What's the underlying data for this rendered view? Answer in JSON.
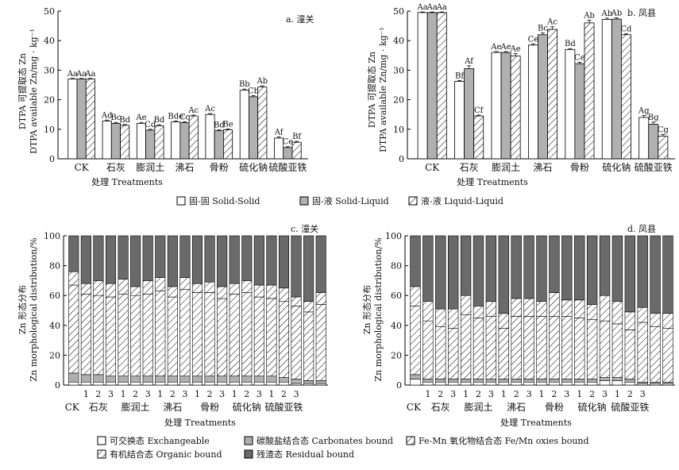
{
  "colors": {
    "white": "#ffffff",
    "gray": "#b0b0b0",
    "dark": "#6a6a6a",
    "stroke": "#000000"
  },
  "legend_top": [
    {
      "label": "固-固 Solid-Solid",
      "pattern": "white"
    },
    {
      "label": "固-液 Solid-Liquid",
      "pattern": "gray"
    },
    {
      "label": "液-液 Liquid-Liquid",
      "pattern": "hatch"
    }
  ],
  "legend_bottom": [
    {
      "label": "可交换态 Exchangeable",
      "pattern": "white"
    },
    {
      "label": "碳酸盐结合态 Carbonates bound",
      "pattern": "gray"
    },
    {
      "label": "Fe-Mn 氧化物结合态 Fe/Mn oxies bound",
      "pattern": "hatch"
    },
    {
      "label": "有机结合态 Organic bound",
      "pattern": "hatch"
    },
    {
      "label": "残渣态 Residual bound",
      "pattern": "dark"
    }
  ],
  "chart_data": [
    {
      "id": "a",
      "type": "bar",
      "title": "a. 潼关",
      "xlabel": "处理 Treatments",
      "ylabel": [
        "DTPA 可提取态 Zn",
        "DTPA available Zn/mg · kg⁻¹"
      ],
      "ylim": [
        0,
        50
      ],
      "yticks": [
        0,
        10,
        20,
        30,
        40,
        50
      ],
      "categories": [
        "CK",
        "石灰",
        "膨润土",
        "沸石",
        "骨粉",
        "硫化钠",
        "硫酸亚铁"
      ],
      "series": [
        {
          "name": "固-固 Solid-Solid",
          "values": [
            27.0,
            12.8,
            12.0,
            12.5,
            15.0,
            23.2,
            7.0
          ],
          "errors": [
            0.2,
            0.3,
            0.3,
            0.3,
            0.3,
            0.4,
            0.4
          ],
          "labels": [
            "Aa",
            "Ad",
            "Ae",
            "Bde",
            "Ac",
            "Bb",
            "Af"
          ]
        },
        {
          "name": "固-液 Solid-Liquid",
          "values": [
            27.0,
            12.0,
            9.7,
            12.2,
            9.5,
            21.0,
            3.8
          ],
          "errors": [
            0.2,
            0.3,
            0.3,
            0.3,
            0.3,
            0.4,
            0.3
          ],
          "labels": [
            "Aa",
            "Bc",
            "Cd",
            "Cc",
            "Bd",
            "Cb",
            "Ce"
          ]
        },
        {
          "name": "液-液 Liquid-Liquid",
          "values": [
            27.0,
            11.3,
            11.2,
            14.5,
            9.8,
            24.3,
            5.6
          ],
          "errors": [
            0.2,
            0.3,
            0.3,
            0.3,
            0.3,
            0.4,
            0.3
          ],
          "labels": [
            "Aa",
            "Bd",
            "Bd",
            "Ac",
            "Be",
            "Ab",
            "Bf"
          ]
        }
      ]
    },
    {
      "id": "b",
      "type": "bar",
      "title": "b. 凤县",
      "xlabel": "处理 Treatments",
      "ylabel": [
        "DTPA 可提取态 Zn",
        "DTPA available Zn/mg · kg⁻¹"
      ],
      "ylim": [
        0,
        50
      ],
      "yticks": [
        0,
        10,
        20,
        30,
        40,
        50
      ],
      "categories": [
        "CK",
        "石灰",
        "膨润土",
        "沸石",
        "骨粉",
        "硫化钠",
        "硫酸亚铁"
      ],
      "series": [
        {
          "name": "固-固 Solid-Solid",
          "values": [
            49.5,
            26.2,
            36.0,
            38.5,
            37.0,
            47.2,
            14.0
          ],
          "errors": [
            0.2,
            0.3,
            0.3,
            0.4,
            0.3,
            0.4,
            0.6
          ],
          "labels": [
            "Aa",
            "Bf",
            "Ae",
            "Ce",
            "Bd",
            "Ab",
            "Ag"
          ]
        },
        {
          "name": "固-液 Solid-Liquid",
          "values": [
            49.5,
            30.5,
            36.0,
            42.0,
            32.2,
            47.3,
            11.7
          ],
          "errors": [
            0.2,
            1.0,
            0.3,
            0.6,
            0.5,
            0.4,
            0.7
          ],
          "labels": [
            "Aa",
            "Af",
            "Ae",
            "Bc",
            "Ce",
            "Ab",
            "Bg"
          ]
        },
        {
          "name": "液-液 Liquid-Liquid",
          "values": [
            49.5,
            14.5,
            34.8,
            43.8,
            46.0,
            42.0,
            7.7
          ],
          "errors": [
            0.2,
            0.3,
            0.8,
            0.9,
            0.9,
            0.3,
            0.5
          ],
          "labels": [
            "Aa",
            "Cf",
            "Ae",
            "Ac",
            "Ab",
            "Cd",
            "Cg"
          ]
        }
      ]
    },
    {
      "id": "c",
      "type": "bar",
      "stacked": true,
      "title": "c. 潼关",
      "xlabel": "处理 Treatments",
      "ylabel": [
        "Zn 形态分布",
        "Zn morphological distribution/%"
      ],
      "ylim": [
        0,
        100
      ],
      "yticks": [
        0,
        20,
        40,
        60,
        80,
        100
      ],
      "group_labels": [
        "CK",
        "石灰",
        "膨润土",
        "沸石",
        "骨粉",
        "硫化钠",
        "硫酸亚铁"
      ],
      "sub_labels": [
        "1",
        "2",
        "3"
      ],
      "series_names": [
        "可交换态 Exchangeable",
        "碳酸盐结合态 Carbonates bound",
        "Fe-Mn 氧化物结合态 Fe/Mn oxies bound",
        "有机结合态 Organic bound",
        "残渣态 Residual bound"
      ],
      "stacks": [
        [
          2,
          6,
          59,
          9,
          24
        ],
        [
          2,
          5,
          54,
          7,
          32
        ],
        [
          2,
          5,
          53,
          10,
          30
        ],
        [
          2,
          4,
          53,
          9,
          32
        ],
        [
          2,
          4,
          55,
          10,
          29
        ],
        [
          2,
          4,
          54,
          6,
          34
        ],
        [
          2,
          4,
          55,
          9,
          30
        ],
        [
          2,
          4,
          57,
          9,
          28
        ],
        [
          2,
          4,
          53,
          7,
          34
        ],
        [
          2,
          4,
          58,
          8,
          28
        ],
        [
          2,
          4,
          56,
          6,
          32
        ],
        [
          2,
          4,
          56,
          7,
          31
        ],
        [
          2,
          4,
          52,
          8,
          34
        ],
        [
          2,
          4,
          55,
          7,
          32
        ],
        [
          2,
          4,
          56,
          8,
          30
        ],
        [
          2,
          4,
          53,
          8,
          33
        ],
        [
          2,
          4,
          52,
          9,
          33
        ],
        [
          2,
          3,
          51,
          9,
          35
        ],
        [
          1,
          3,
          49,
          6,
          41
        ],
        [
          1,
          2,
          46,
          7,
          44
        ],
        [
          1,
          2,
          51,
          8,
          38
        ]
      ]
    },
    {
      "id": "d",
      "type": "bar",
      "stacked": true,
      "title": "d. 凤县",
      "xlabel": "处理 Treatments",
      "ylabel": [
        "Zn 形态分布",
        "Zn morphological distribution/%"
      ],
      "ylim": [
        0,
        100
      ],
      "yticks": [
        0,
        20,
        40,
        60,
        80,
        100
      ],
      "group_labels": [
        "CK",
        "石灰",
        "膨润土",
        "沸石",
        "骨粉",
        "硫化钠",
        "硫酸亚铁"
      ],
      "sub_labels": [
        "1",
        "2",
        "3"
      ],
      "series_names": [
        "可交换态 Exchangeable",
        "碳酸盐结合态 Carbonates bound",
        "Fe-Mn 氧化物结合态 Fe/Mn oxies bound",
        "有机结合态 Organic bound",
        "残渣态 Residual bound"
      ],
      "stacks": [
        [
          4,
          3,
          46,
          13,
          34
        ],
        [
          2,
          2,
          39,
          13,
          44
        ],
        [
          2,
          2,
          35,
          12,
          49
        ],
        [
          2,
          2,
          34,
          13,
          49
        ],
        [
          2,
          2,
          43,
          13,
          40
        ],
        [
          2,
          2,
          41,
          8,
          47
        ],
        [
          2,
          2,
          42,
          10,
          44
        ],
        [
          2,
          2,
          34,
          10,
          52
        ],
        [
          2,
          2,
          42,
          12,
          42
        ],
        [
          2,
          2,
          42,
          12,
          42
        ],
        [
          2,
          2,
          42,
          10,
          44
        ],
        [
          2,
          2,
          42,
          16,
          38
        ],
        [
          2,
          2,
          42,
          11,
          43
        ],
        [
          2,
          2,
          41,
          12,
          43
        ],
        [
          2,
          2,
          40,
          10,
          46
        ],
        [
          3,
          2,
          38,
          17,
          40
        ],
        [
          3,
          2,
          36,
          15,
          44
        ],
        [
          2,
          2,
          33,
          12,
          51
        ],
        [
          1,
          1,
          40,
          10,
          48
        ],
        [
          1,
          1,
          37,
          9,
          52
        ],
        [
          1,
          1,
          36,
          10,
          52
        ]
      ]
    }
  ]
}
